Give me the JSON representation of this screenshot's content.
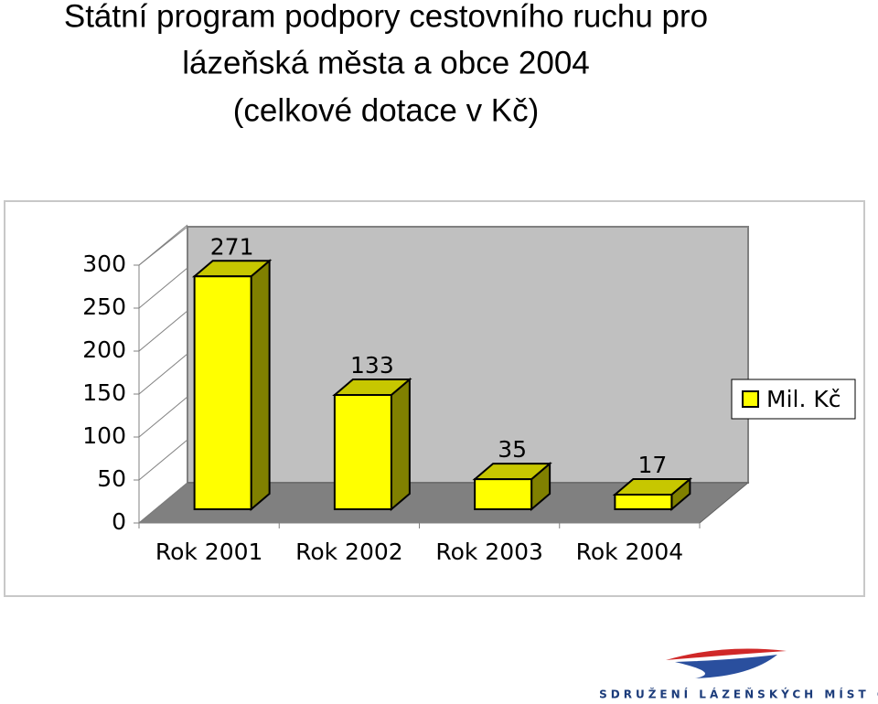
{
  "chart_data": {
    "type": "bar3d",
    "title": [
      "Státní program podpory cestovního ruchu pro",
      "lázeňská města a obce 2004",
      "(celkové dotace v Kč)"
    ],
    "categories": [
      "Rok 2001",
      "Rok 2002",
      "Rok 2003",
      "Rok 2004"
    ],
    "series": [
      {
        "name": "Mil. Kč",
        "color": "#ffff00",
        "values": [
          271,
          133,
          35,
          17
        ]
      }
    ],
    "ylim": [
      0,
      300
    ],
    "yticks": [
      0,
      50,
      100,
      150,
      200,
      250,
      300
    ],
    "legend": "right",
    "data_labels": true
  },
  "footer": {
    "logo_text": "SDRUŽENÍ LÁZEŇSKÝCH MÍST ČR"
  }
}
